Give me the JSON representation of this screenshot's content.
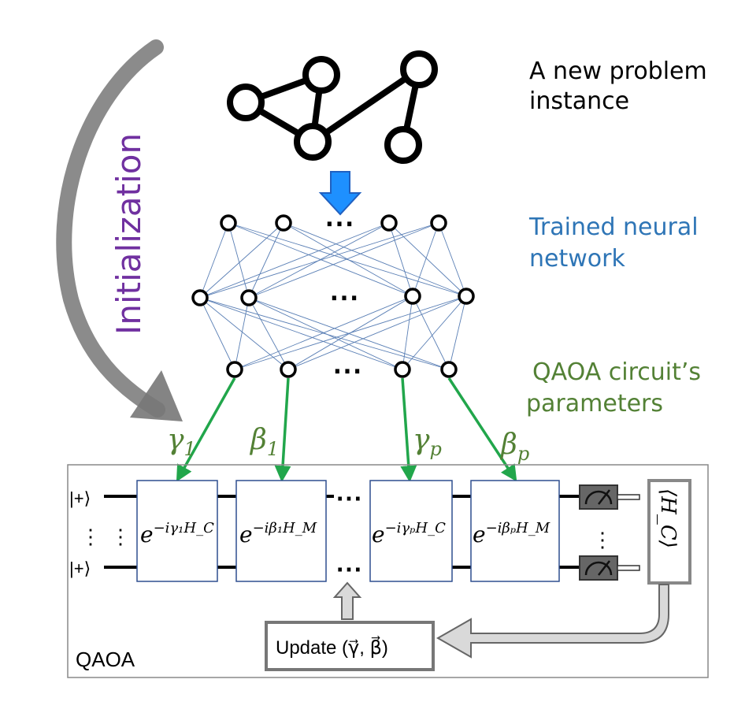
{
  "labels": {
    "problem": [
      "A new problem",
      "instance"
    ],
    "network": [
      "Trained neural",
      "network"
    ],
    "params": [
      "QAOA circuit’s",
      "parameters"
    ],
    "initialization": "Initialization",
    "qaoa": "QAOA",
    "dots": "⋯",
    "vdots": "⋮"
  },
  "params": {
    "gamma1": "γ",
    "gamma1_sub": "1",
    "beta1": "β",
    "beta1_sub": "1",
    "gammap": "γ",
    "gammap_sub": "p",
    "betap": "β",
    "betap_sub": "p"
  },
  "circuit": {
    "qubit_state": "|+⟩",
    "expectation": "⟨H_C⟩",
    "update_label": "Update (γ⃗, β⃗)",
    "gates": [
      {
        "base": "e",
        "sup": "−iγ₁H_C"
      },
      {
        "base": "e",
        "sup": "−iβ₁H_M"
      },
      {
        "base": "e",
        "sup": "−iγₚH_C"
      },
      {
        "base": "e",
        "sup": "−iβₚH_M"
      }
    ]
  },
  "colors": {
    "blue_text": "#2e75b6",
    "green_text": "#538135",
    "purple_text": "#7030a0",
    "arrow_green": "#21a64b",
    "arrow_blue": "#1e90ff",
    "gate_border": "#2f4f8f",
    "gray_arrow": "#bdbdbd"
  }
}
